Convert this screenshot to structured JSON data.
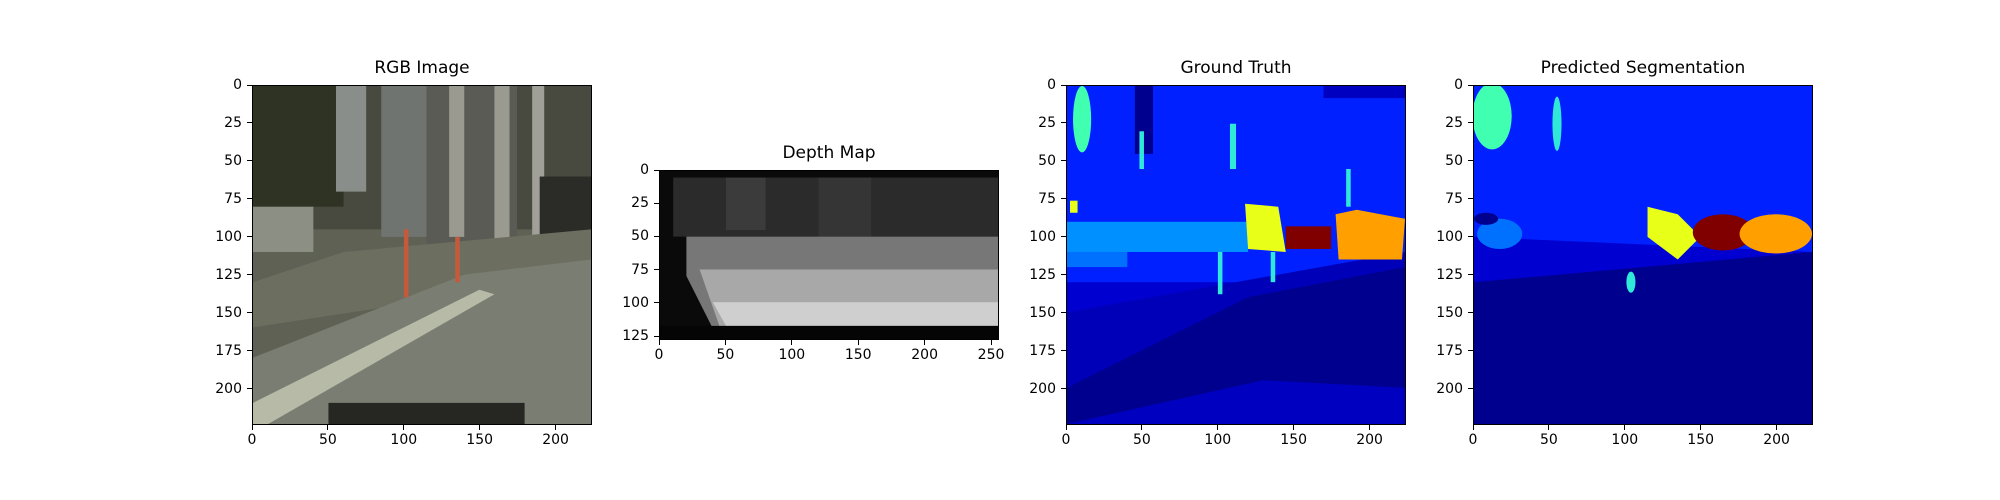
{
  "figure": {
    "panels": [
      {
        "id": "rgb",
        "title": "RGB Image",
        "x_ticks": [
          "0",
          "50",
          "100",
          "150",
          "200"
        ],
        "y_ticks": [
          "0",
          "25",
          "50",
          "75",
          "100",
          "125",
          "150",
          "175",
          "200"
        ],
        "x_range": [
          0,
          224
        ],
        "y_range": [
          0,
          224
        ],
        "content": "street-scene-photo"
      },
      {
        "id": "depth",
        "title": "Depth Map",
        "x_ticks": [
          "0",
          "50",
          "100",
          "150",
          "200",
          "250"
        ],
        "y_ticks": [
          "0",
          "25",
          "50",
          "75",
          "100",
          "125"
        ],
        "x_range": [
          0,
          256
        ],
        "y_range": [
          0,
          128
        ],
        "content": "grayscale-depth"
      },
      {
        "id": "gt",
        "title": "Ground Truth",
        "x_ticks": [
          "0",
          "50",
          "100",
          "150",
          "200"
        ],
        "y_ticks": [
          "0",
          "25",
          "50",
          "75",
          "100",
          "125",
          "150",
          "175",
          "200"
        ],
        "x_range": [
          0,
          224
        ],
        "y_range": [
          0,
          224
        ],
        "content": "segmentation-mask"
      },
      {
        "id": "pred",
        "title": "Predicted Segmentation",
        "x_ticks": [
          "0",
          "50",
          "100",
          "150",
          "200"
        ],
        "y_ticks": [
          "0",
          "25",
          "50",
          "75",
          "100",
          "125",
          "150",
          "175",
          "200"
        ],
        "x_range": [
          0,
          224
        ],
        "y_range": [
          0,
          224
        ],
        "content": "segmentation-mask"
      }
    ],
    "colors": {
      "road": "#00008f",
      "sidewalk": "#0000d0",
      "building": "#0020ff",
      "sky_teal": "#40ffb0",
      "cyan": "#30e8d8",
      "yellow": "#e8ff18",
      "darkred": "#800000",
      "orange": "#ffa000",
      "lightblue": "#0090ff"
    }
  }
}
